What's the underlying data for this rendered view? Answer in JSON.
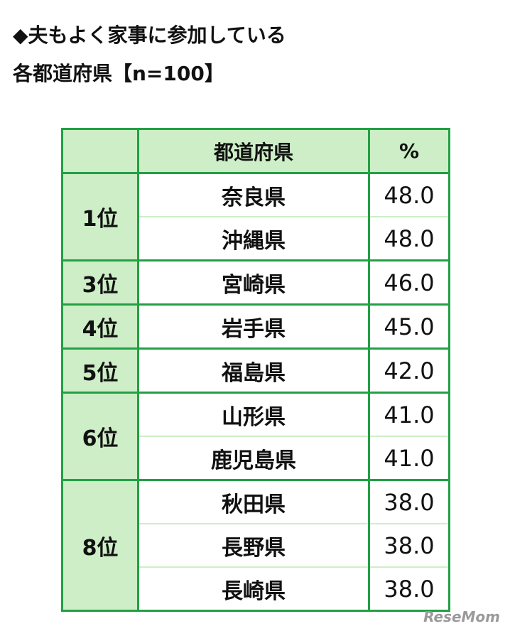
{
  "title": {
    "line1": "◆夫もよく家事に参加している",
    "line2": "各都道府県【n=100】"
  },
  "table": {
    "header": [
      "都道府県",
      "%"
    ],
    "groups": [
      {
        "rank": "1位",
        "rows": [
          {
            "prefecture": "奈良県",
            "percent": "48.0"
          },
          {
            "prefecture": "沖縄県",
            "percent": "48.0"
          }
        ]
      },
      {
        "rank": "3位",
        "rows": [
          {
            "prefecture": "宮崎県",
            "percent": "46.0"
          }
        ]
      },
      {
        "rank": "4位",
        "rows": [
          {
            "prefecture": "岩手県",
            "percent": "45.0"
          }
        ]
      },
      {
        "rank": "5位",
        "rows": [
          {
            "prefecture": "福島県",
            "percent": "42.0"
          }
        ]
      },
      {
        "rank": "6位",
        "rows": [
          {
            "prefecture": "山形県",
            "percent": "41.0"
          },
          {
            "prefecture": "鹿児島県",
            "percent": "41.0"
          }
        ]
      },
      {
        "rank": "8位",
        "rows": [
          {
            "prefecture": "秋田県",
            "percent": "38.0"
          },
          {
            "prefecture": "長野県",
            "percent": "38.0"
          },
          {
            "prefecture": "長崎県",
            "percent": "38.0"
          }
        ]
      }
    ]
  },
  "watermark": "ReseMom"
}
